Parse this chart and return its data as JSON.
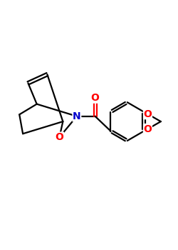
{
  "bg_color": "#ffffff",
  "bond_color": "#000000",
  "N_color": "#0000cd",
  "O_color": "#ff0000",
  "bond_width": 1.6,
  "font_size": 10,
  "figsize": [
    2.5,
    3.5
  ],
  "dpi": 100,
  "xlim": [
    0,
    10
  ],
  "ylim": [
    0,
    14
  ]
}
